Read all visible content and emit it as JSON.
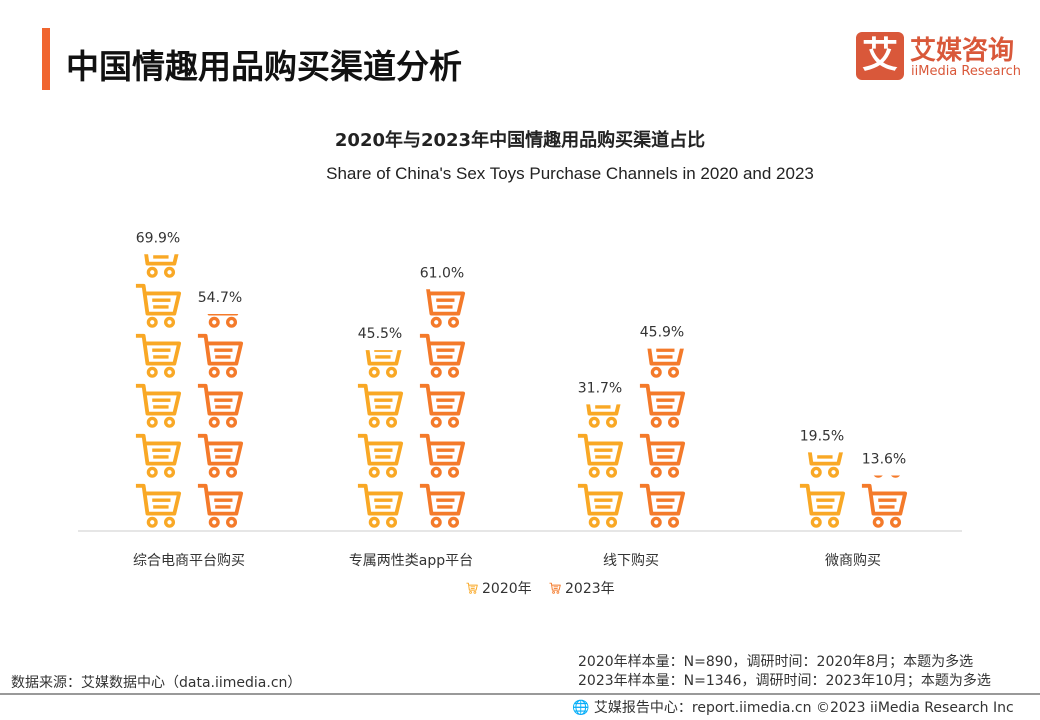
{
  "header": {
    "title": "中国情趣用品购买渠道分析",
    "logo_cn": "艾媒咨询",
    "logo_en": "iiMedia Research",
    "logo_mark": "艾"
  },
  "chart_data": {
    "type": "bar",
    "style": "pictogram (shopping-cart icons)",
    "title": "2020年与2023年中国情趣用品购买渠道占比",
    "subtitle": "Share of China's Sex Toys Purchase Channels in 2020 and 2023",
    "categories": [
      "综合电商平台购买",
      "专属两性类app平台",
      "线下购买",
      "微商购买"
    ],
    "series": [
      {
        "name": "2020年",
        "values": [
          69.9,
          45.5,
          31.7,
          19.5
        ],
        "labels": [
          "69.9%",
          "45.5%",
          "31.7%",
          "19.5%"
        ],
        "color": "#f9a825"
      },
      {
        "name": "2023年",
        "values": [
          54.7,
          61.0,
          45.9,
          13.6
        ],
        "labels": [
          "54.7%",
          "61.0%",
          "45.9%",
          "13.6%"
        ],
        "color": "#f47a2a"
      }
    ],
    "legend": "bottom",
    "grid": false,
    "icon": "shopping-cart-icon"
  },
  "footer": {
    "source": "数据来源：艾媒数据中心（data.iimedia.cn）",
    "note1": "2020年样本量：N=890，调研时间：2020年8月；本题为多选",
    "note2": "2023年样本量：N=1346，调研时间：2023年10月；本题为多选",
    "report": "艾媒报告中心：report.iimedia.cn ©2023  iiMedia Research  Inc"
  }
}
